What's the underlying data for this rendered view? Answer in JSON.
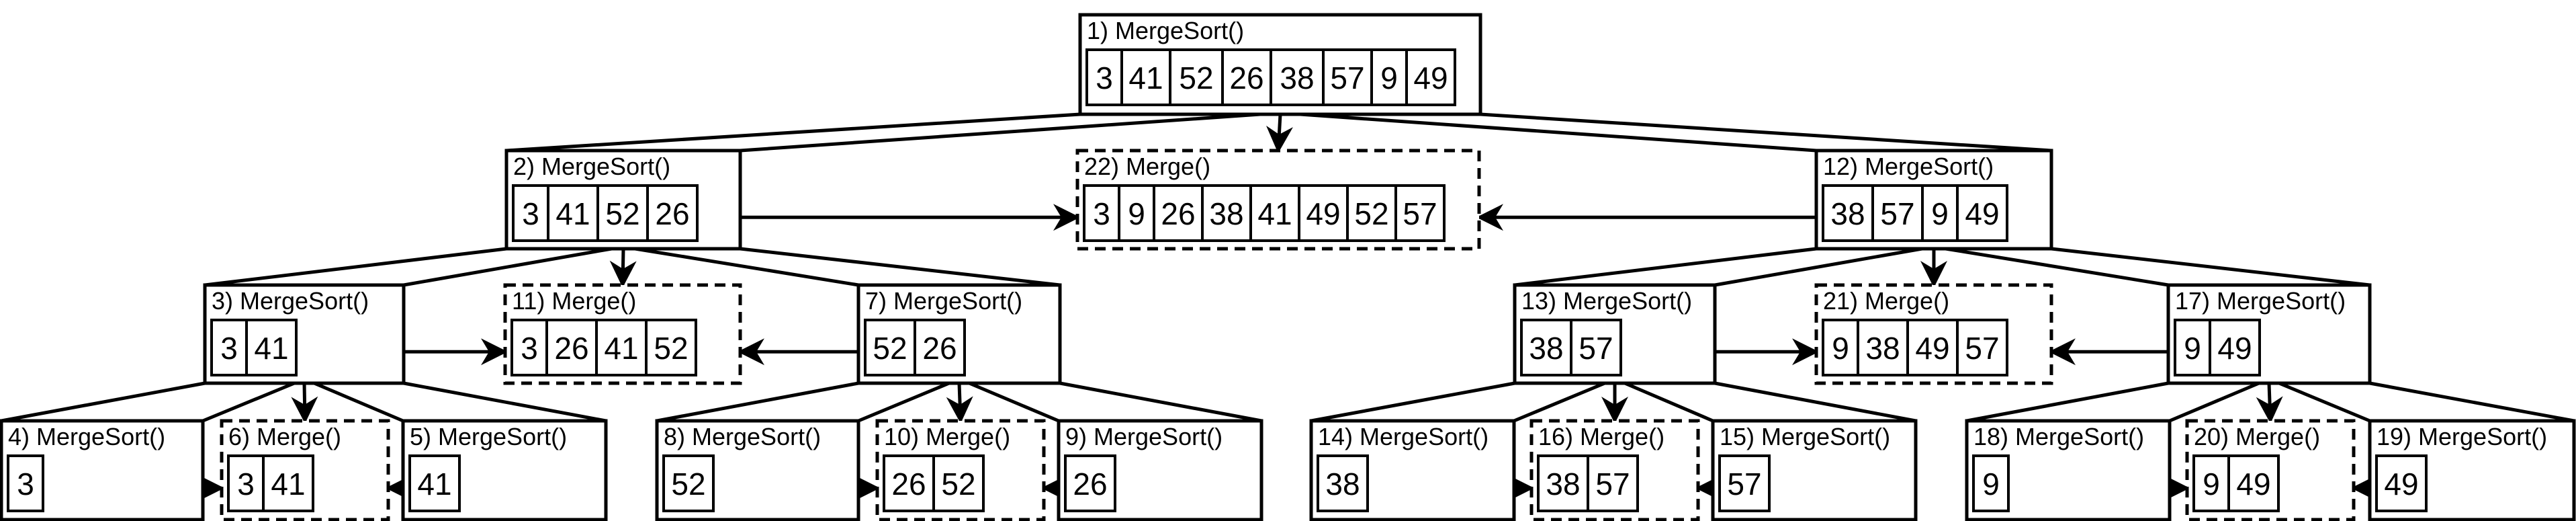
{
  "diagram": {
    "nodes": [
      {
        "id": "n1",
        "label": "1) MergeSort()",
        "kind": "sort",
        "values": [
          "3",
          "41",
          "52",
          "26",
          "38",
          "57",
          "9",
          "49"
        ]
      },
      {
        "id": "n2",
        "label": "2) MergeSort()",
        "kind": "sort",
        "values": [
          "3",
          "41",
          "52",
          "26"
        ]
      },
      {
        "id": "n3",
        "label": "3) MergeSort()",
        "kind": "sort",
        "values": [
          "3",
          "41"
        ]
      },
      {
        "id": "n4",
        "label": "4) MergeSort()",
        "kind": "sort",
        "values": [
          "3"
        ]
      },
      {
        "id": "n5",
        "label": "5) MergeSort()",
        "kind": "sort",
        "values": [
          "41"
        ]
      },
      {
        "id": "n6",
        "label": "6) Merge()",
        "kind": "merge",
        "values": [
          "3",
          "41"
        ]
      },
      {
        "id": "n7",
        "label": "7) MergeSort()",
        "kind": "sort",
        "values": [
          "52",
          "26"
        ]
      },
      {
        "id": "n8",
        "label": "8) MergeSort()",
        "kind": "sort",
        "values": [
          "52"
        ]
      },
      {
        "id": "n9",
        "label": "9) MergeSort()",
        "kind": "sort",
        "values": [
          "26"
        ]
      },
      {
        "id": "n10",
        "label": "10) Merge()",
        "kind": "merge",
        "values": [
          "26",
          "52"
        ]
      },
      {
        "id": "n11",
        "label": "11) Merge()",
        "kind": "merge",
        "values": [
          "3",
          "26",
          "41",
          "52"
        ]
      },
      {
        "id": "n12",
        "label": "12) MergeSort()",
        "kind": "sort",
        "values": [
          "38",
          "57",
          "9",
          "49"
        ]
      },
      {
        "id": "n13",
        "label": "13) MergeSort()",
        "kind": "sort",
        "values": [
          "38",
          "57"
        ]
      },
      {
        "id": "n14",
        "label": "14) MergeSort()",
        "kind": "sort",
        "values": [
          "38"
        ]
      },
      {
        "id": "n15",
        "label": "15) MergeSort()",
        "kind": "sort",
        "values": [
          "57"
        ]
      },
      {
        "id": "n16",
        "label": "16) Merge()",
        "kind": "merge",
        "values": [
          "38",
          "57"
        ]
      },
      {
        "id": "n17",
        "label": "17) MergeSort()",
        "kind": "sort",
        "values": [
          "9",
          "49"
        ]
      },
      {
        "id": "n18",
        "label": "18) MergeSort()",
        "kind": "sort",
        "values": [
          "9"
        ]
      },
      {
        "id": "n19",
        "label": "19) MergeSort()",
        "kind": "sort",
        "values": [
          "49"
        ]
      },
      {
        "id": "n20",
        "label": "20) Merge()",
        "kind": "merge",
        "values": [
          "9",
          "49"
        ]
      },
      {
        "id": "n21",
        "label": "21) Merge()",
        "kind": "merge",
        "values": [
          "9",
          "38",
          "49",
          "57"
        ]
      },
      {
        "id": "n22",
        "label": "22) Merge()",
        "kind": "merge",
        "values": [
          "3",
          "9",
          "26",
          "38",
          "41",
          "49",
          "52",
          "57"
        ]
      }
    ],
    "edges": [
      {
        "from": "n1",
        "to": "n2",
        "type": "split"
      },
      {
        "from": "n1",
        "to": "n12",
        "type": "split"
      },
      {
        "from": "n1",
        "to": "n22",
        "type": "arrow"
      },
      {
        "from": "n2",
        "to": "n22",
        "type": "arrow"
      },
      {
        "from": "n12",
        "to": "n22",
        "type": "arrow"
      },
      {
        "from": "n2",
        "to": "n3",
        "type": "split"
      },
      {
        "from": "n2",
        "to": "n7",
        "type": "split"
      },
      {
        "from": "n2",
        "to": "n11",
        "type": "arrow"
      },
      {
        "from": "n3",
        "to": "n11",
        "type": "arrow"
      },
      {
        "from": "n7",
        "to": "n11",
        "type": "arrow"
      },
      {
        "from": "n3",
        "to": "n4",
        "type": "split"
      },
      {
        "from": "n3",
        "to": "n5",
        "type": "split"
      },
      {
        "from": "n3",
        "to": "n6",
        "type": "arrow"
      },
      {
        "from": "n4",
        "to": "n6",
        "type": "arrow"
      },
      {
        "from": "n5",
        "to": "n6",
        "type": "arrow"
      },
      {
        "from": "n7",
        "to": "n8",
        "type": "split"
      },
      {
        "from": "n7",
        "to": "n9",
        "type": "split"
      },
      {
        "from": "n7",
        "to": "n10",
        "type": "arrow"
      },
      {
        "from": "n8",
        "to": "n10",
        "type": "arrow"
      },
      {
        "from": "n9",
        "to": "n10",
        "type": "arrow"
      },
      {
        "from": "n12",
        "to": "n13",
        "type": "split"
      },
      {
        "from": "n12",
        "to": "n17",
        "type": "split"
      },
      {
        "from": "n12",
        "to": "n21",
        "type": "arrow"
      },
      {
        "from": "n13",
        "to": "n21",
        "type": "arrow"
      },
      {
        "from": "n17",
        "to": "n21",
        "type": "arrow"
      },
      {
        "from": "n13",
        "to": "n14",
        "type": "split"
      },
      {
        "from": "n13",
        "to": "n15",
        "type": "split"
      },
      {
        "from": "n13",
        "to": "n16",
        "type": "arrow"
      },
      {
        "from": "n14",
        "to": "n16",
        "type": "arrow"
      },
      {
        "from": "n15",
        "to": "n16",
        "type": "arrow"
      },
      {
        "from": "n17",
        "to": "n18",
        "type": "split"
      },
      {
        "from": "n17",
        "to": "n19",
        "type": "split"
      },
      {
        "from": "n17",
        "to": "n20",
        "type": "arrow"
      },
      {
        "from": "n18",
        "to": "n20",
        "type": "arrow"
      },
      {
        "from": "n19",
        "to": "n20",
        "type": "arrow"
      }
    ]
  }
}
